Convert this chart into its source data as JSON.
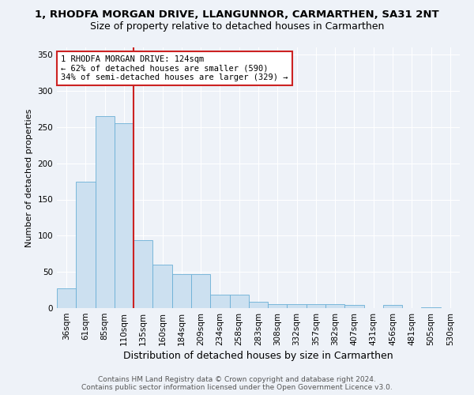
{
  "title_line1": "1, RHODFA MORGAN DRIVE, LLANGUNNOR, CARMARTHEN, SA31 2NT",
  "title_line2": "Size of property relative to detached houses in Carmarthen",
  "xlabel": "Distribution of detached houses by size in Carmarthen",
  "ylabel": "Number of detached properties",
  "bar_color": "#cce0f0",
  "bar_edgecolor": "#6aafd6",
  "vline_color": "#cc2222",
  "property_size": 124,
  "annotation_text": "1 RHODFA MORGAN DRIVE: 124sqm\n← 62% of detached houses are smaller (590)\n34% of semi-detached houses are larger (329) →",
  "annotation_box_edgecolor": "#cc2222",
  "categories": [
    "36sqm",
    "61sqm",
    "85sqm",
    "110sqm",
    "135sqm",
    "160sqm",
    "184sqm",
    "209sqm",
    "234sqm",
    "258sqm",
    "283sqm",
    "308sqm",
    "332sqm",
    "357sqm",
    "382sqm",
    "407sqm",
    "431sqm",
    "456sqm",
    "481sqm",
    "505sqm",
    "530sqm"
  ],
  "values": [
    27,
    175,
    265,
    255,
    94,
    60,
    47,
    47,
    19,
    19,
    9,
    6,
    5,
    5,
    5,
    4,
    0,
    4,
    0,
    1,
    0
  ],
  "vline_index": 3.5,
  "ylim": [
    0,
    360
  ],
  "yticks": [
    0,
    50,
    100,
    150,
    200,
    250,
    300,
    350
  ],
  "background_color": "#eef2f8",
  "plot_background_color": "#eef2f8",
  "grid_color": "#ffffff",
  "title_fontsize": 9.5,
  "subtitle_fontsize": 9,
  "xlabel_fontsize": 9,
  "ylabel_fontsize": 8,
  "tick_fontsize": 7.5,
  "annotation_fontsize": 7.5,
  "footer_fontsize": 6.5,
  "footer_text": "Contains HM Land Registry data © Crown copyright and database right 2024.\nContains public sector information licensed under the Open Government Licence v3.0."
}
